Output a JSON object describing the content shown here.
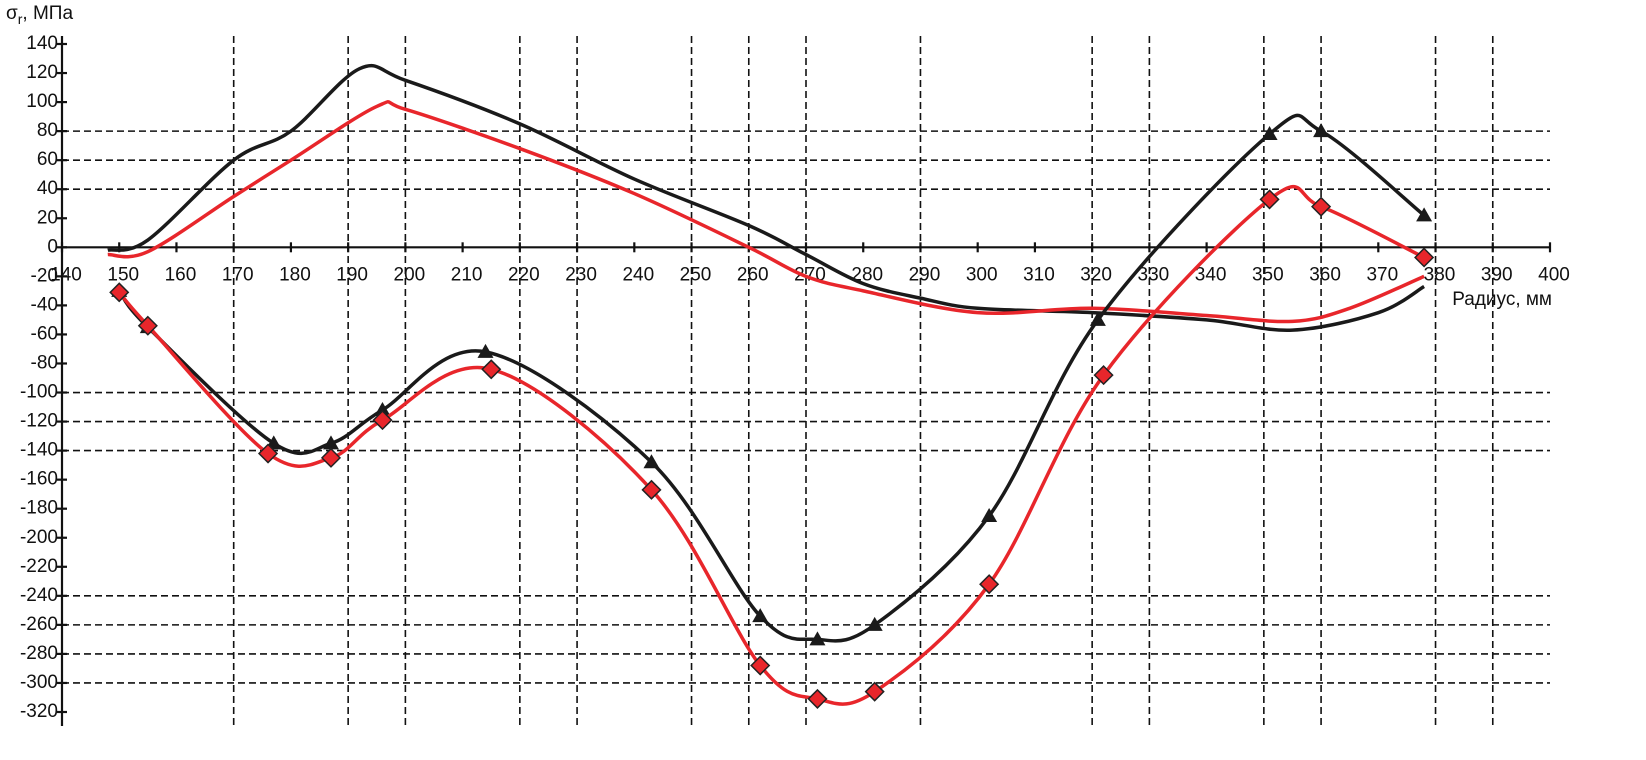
{
  "chart_data": {
    "type": "line",
    "y_label": "σ",
    "y_label_sub": "r",
    "y_label_unit": ", МПа",
    "x_label": "Радиус, мм",
    "xlim": [
      140,
      400
    ],
    "ylim": [
      -320,
      140
    ],
    "xticks": [
      140,
      150,
      160,
      170,
      180,
      190,
      200,
      210,
      220,
      230,
      240,
      250,
      260,
      270,
      280,
      290,
      300,
      310,
      320,
      330,
      340,
      350,
      360,
      370,
      380,
      390,
      400
    ],
    "yticks": [
      -320,
      -300,
      -280,
      -260,
      -240,
      -220,
      -200,
      -180,
      -160,
      -140,
      -120,
      -100,
      -80,
      -60,
      -40,
      -20,
      0,
      20,
      40,
      60,
      80,
      100,
      120,
      140
    ],
    "xgrid": [
      170,
      190,
      200,
      220,
      230,
      250,
      260,
      270,
      290,
      320,
      330,
      350,
      360,
      380,
      390
    ],
    "ygrid": [
      80,
      60,
      40,
      -100,
      -120,
      -140,
      -240,
      -260,
      -280,
      -300
    ],
    "series": [
      {
        "color": "#1a1a1a",
        "marker": "none",
        "x": [
          148,
          155,
          170,
          180,
          192,
          200,
          220,
          240,
          260,
          270,
          280,
          290,
          300,
          320,
          340,
          355,
          370,
          378
        ],
        "values": [
          -2,
          5,
          60,
          80,
          123,
          115,
          85,
          47,
          15,
          -5,
          -25,
          -35,
          -42,
          -45,
          -50,
          -57,
          -45,
          -27
        ]
      },
      {
        "color": "#e8262b",
        "marker": "none",
        "x": [
          148,
          155,
          170,
          180,
          195,
          200,
          220,
          240,
          260,
          270,
          280,
          300,
          320,
          340,
          355,
          365,
          378
        ],
        "values": [
          -5,
          -3,
          35,
          60,
          97,
          95,
          68,
          37,
          0,
          -20,
          -30,
          -45,
          -42,
          -47,
          -51,
          -42,
          -20
        ]
      },
      {
        "color": "#1a1a1a",
        "marker": "triangle",
        "x": [
          150,
          155,
          177,
          187,
          196,
          214,
          243,
          262,
          272,
          282,
          302,
          321,
          351,
          360,
          378
        ],
        "values": [
          -30,
          -55,
          -135,
          -135,
          -112,
          -72,
          -148,
          -254,
          -270,
          -260,
          -185,
          -50,
          78,
          80,
          22
        ]
      },
      {
        "color": "#e8262b",
        "marker": "diamond",
        "x": [
          150,
          155,
          176,
          187,
          196,
          215,
          243,
          262,
          272,
          282,
          302,
          322,
          351,
          360,
          378
        ],
        "values": [
          -31,
          -54,
          -142,
          -145,
          -119,
          -84,
          -167,
          -288,
          -311,
          -306,
          -232,
          -88,
          33,
          28,
          -7
        ]
      }
    ]
  }
}
